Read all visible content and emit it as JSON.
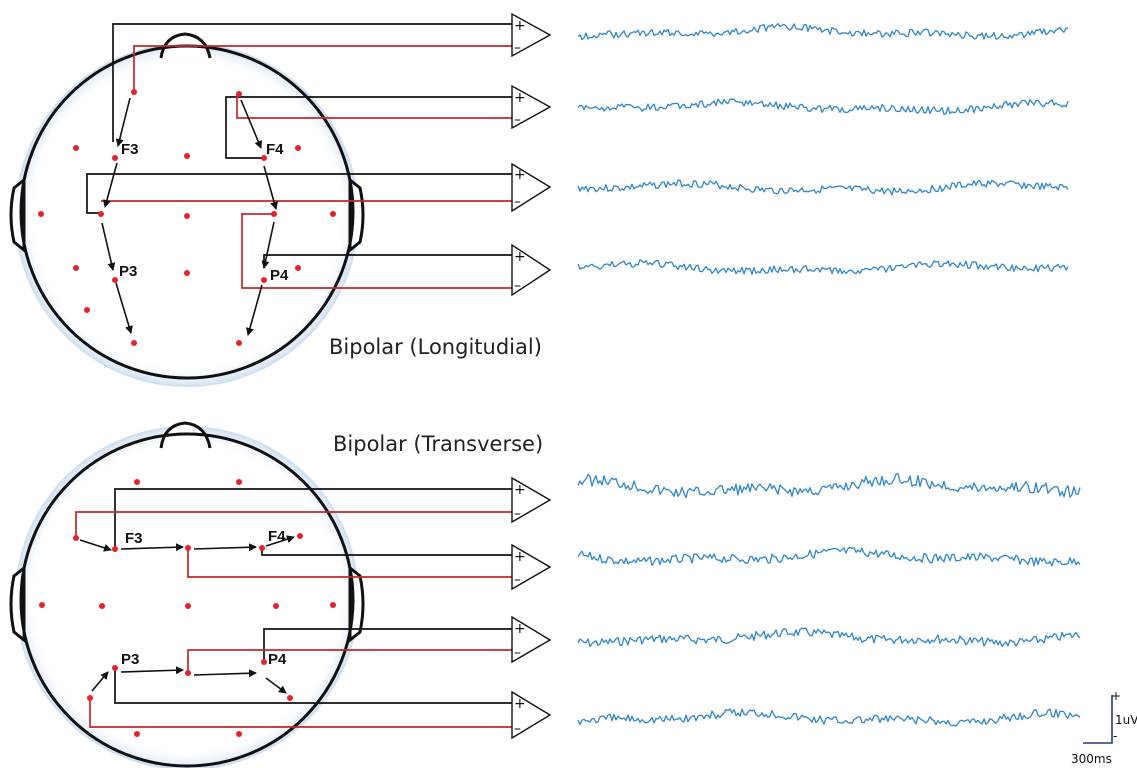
{
  "panels": [
    {
      "title": "Bipolar (Longitudial)",
      "electrodes": [
        "F3",
        "F4",
        "P3",
        "P4"
      ],
      "channel_count": 4
    },
    {
      "title": "Bipolar (Transverse)",
      "electrodes": [
        "F3",
        "F4",
        "P3",
        "P4"
      ],
      "channel_count": 4
    }
  ],
  "amplifier": {
    "plus": "+",
    "minus": "–"
  },
  "scale_bar": {
    "plus": "+",
    "minus": "-",
    "amplitude": "1uV",
    "time": "300ms"
  },
  "colors": {
    "wire_black": "#111111",
    "wire_red": "#c0282d",
    "electrode": "#e3242b",
    "signal": "#2f86c8"
  }
}
